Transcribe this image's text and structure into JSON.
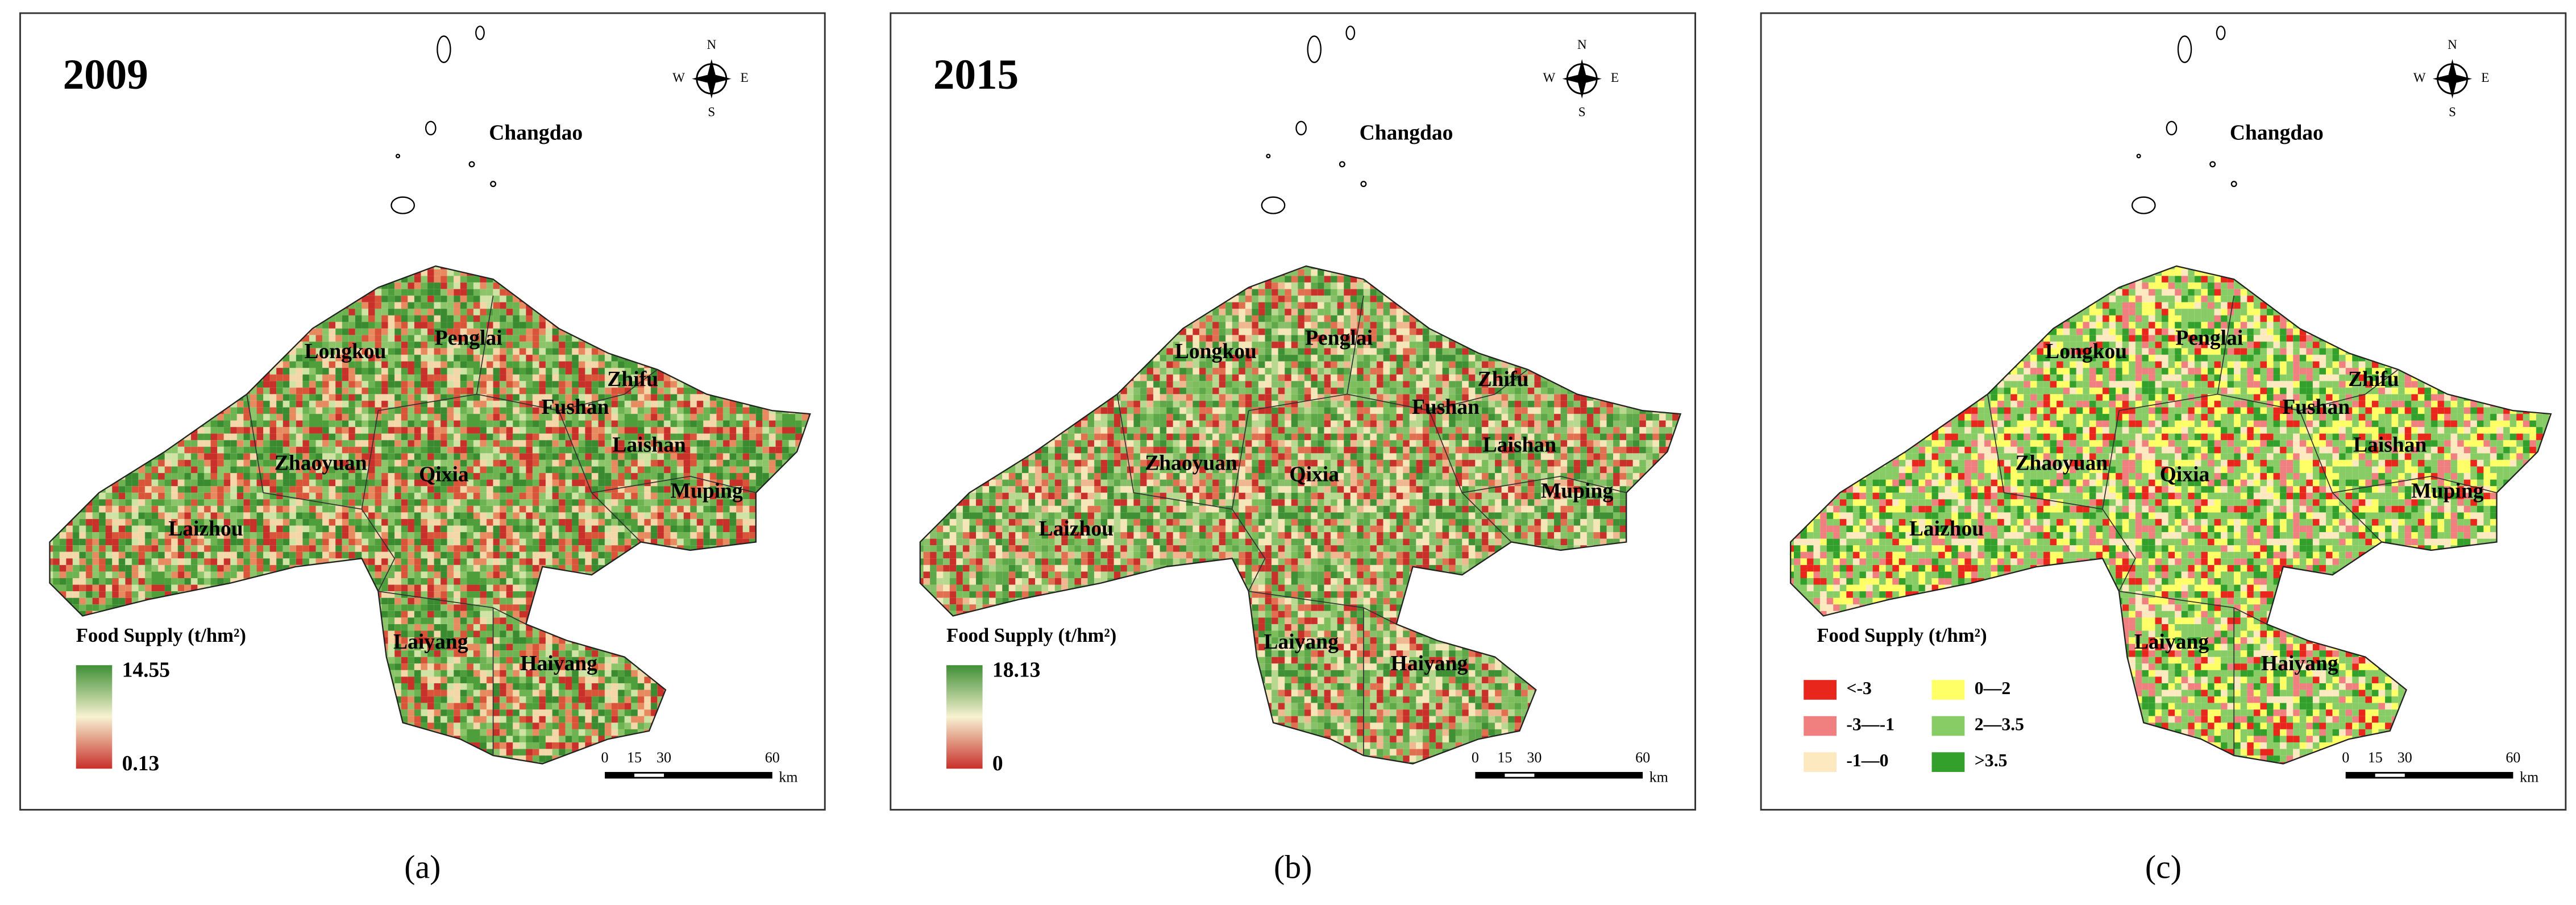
{
  "panels": [
    {
      "year": "2009",
      "caption": "(a)",
      "places": [
        "Changdao",
        "Longkou",
        "Penglai",
        "Zhifu",
        "Fushan",
        "Laishan",
        "Zhaoyuan",
        "Qixia",
        "Muping",
        "Laizhou",
        "Laiyang",
        "Haiyang"
      ],
      "legend": {
        "title": "Food Supply (t/hm²)",
        "max": "14.55",
        "min": "0.13"
      },
      "scale": {
        "ticks": [
          "0",
          "15",
          "30",
          "60"
        ],
        "unit": "km"
      },
      "compass": {
        "n": "N",
        "s": "S",
        "w": "W",
        "e": "E"
      }
    },
    {
      "year": "2015",
      "caption": "(b)",
      "places": [
        "Changdao",
        "Longkou",
        "Penglai",
        "Zhifu",
        "Fushan",
        "Laishan",
        "Zhaoyuan",
        "Qixia",
        "Muping",
        "Laizhou",
        "Laiyang",
        "Haiyang"
      ],
      "legend": {
        "title": "Food Supply (t/hm²)",
        "max": "18.13",
        "min": "0"
      },
      "scale": {
        "ticks": [
          "0",
          "15",
          "30",
          "60"
        ],
        "unit": "km"
      },
      "compass": {
        "n": "N",
        "s": "S",
        "w": "W",
        "e": "E"
      }
    },
    {
      "caption": "(c)",
      "places": [
        "Changdao",
        "Longkou",
        "Penglai",
        "Zhifu",
        "Fushan",
        "Laishan",
        "Zhaoyuan",
        "Qixia",
        "Muping",
        "Laizhou",
        "Laiyang",
        "Haiyang"
      ],
      "legend": {
        "title": "Food Supply (t/hm²)",
        "classes": [
          "<-3",
          "-3—-1",
          "-1—0",
          "0—2",
          "2—3.5",
          ">3.5"
        ]
      },
      "scale": {
        "ticks": [
          "0",
          "15",
          "30",
          "60"
        ],
        "unit": "km"
      },
      "compass": {
        "n": "N",
        "s": "S",
        "w": "W",
        "e": "E"
      }
    }
  ]
}
